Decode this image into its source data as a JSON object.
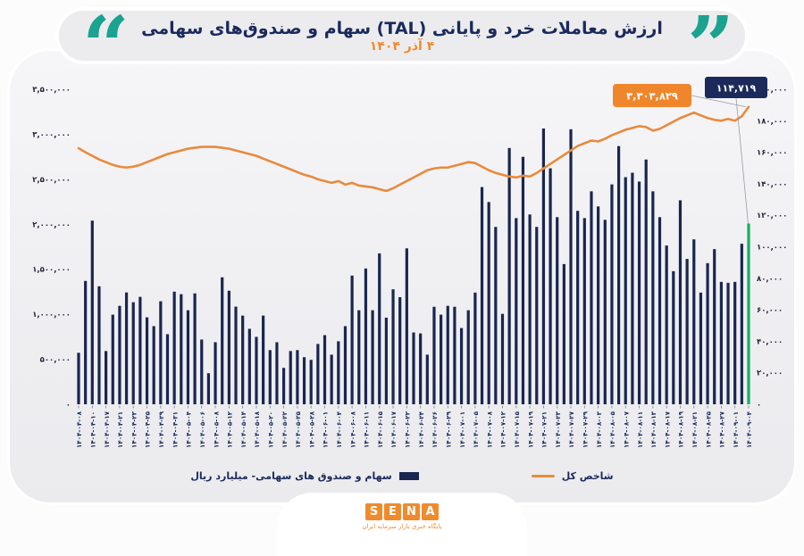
{
  "header": {
    "title": "ارزش معاملات خرد و پایانی (TAL) سهام و صندوق‌های سهامی",
    "subtitle": "۴ آذر ۱۴۰۴",
    "left_quote_glyph": "“",
    "right_quote_glyph": "”"
  },
  "legend": {
    "bars_label": "سهام و صندوق های سهامی-  میلیارد ریال",
    "line_label": "شاخص کل"
  },
  "annotations": {
    "line_value_label": "۳,۳۰۳,۸۲۹",
    "bar_value_label": "۱۱۴,۷۱۹"
  },
  "footer": {
    "logo_letters": [
      "S",
      "E",
      "N",
      "A"
    ],
    "tagline": "پایگاه خبری بازار سرمایه ایران"
  },
  "colors": {
    "navy": "#19264f",
    "orange": "#e98a3c",
    "teal": "#1aa390",
    "green_highlight": "#12b05e",
    "annotation_orange": "#f0862c",
    "annotation_navy": "#1b2a5a"
  },
  "chart_data": {
    "type": "bar",
    "title": "ارزش معاملات خرد و پایانی (TAL) سهام و صندوق‌های سهامی",
    "subtitle_date": "۴ آذر ۱۴۰۴",
    "legend_position": "bottom",
    "grid": false,
    "ylim_left": [
      0,
      3500000
    ],
    "ylim_right": [
      0,
      200000
    ],
    "left_tick_labels": [
      "۰",
      "۵۰۰,۰۰۰",
      "۱,۰۰۰,۰۰۰",
      "۱,۵۰۰,۰۰۰",
      "۲,۰۰۰,۰۰۰",
      "۲,۵۰۰,۰۰۰",
      "۳,۰۰۰,۰۰۰",
      "۳,۵۰۰,۰۰۰"
    ],
    "right_tick_labels": [
      "۰",
      "۲۰,۰۰۰",
      "۴۰,۰۰۰",
      "۶۰,۰۰۰",
      "۸۰,۰۰۰",
      "۱۰۰,۰۰۰",
      "۱۲۰,۰۰۰",
      "۱۴۰,۰۰۰",
      "۱۶۰,۰۰۰",
      "۱۸۰,۰۰۰",
      "۲۰۰,۰۰۰"
    ],
    "x_tick_every_n_bars": 2,
    "x_tick_labels": [
      "۱۴۰۴-۰۴-۰۸",
      "۱۴۰۴-۰۴-۱۰",
      "۱۴۰۴-۰۴-۱۷",
      "۱۴۰۴-۰۴-۲۱",
      "۱۴۰۴-۰۴-۲۳",
      "۱۴۰۴-۰۴-۲۵",
      "۱۴۰۴-۰۴-۲۹",
      "۱۴۰۴-۰۴-۳۱",
      "۱۴۰۴-۰۵-۰۴",
      "۱۴۰۴-۰۵-۰۶",
      "۱۴۰۴-۰۵-۰۸",
      "۱۴۰۴-۰۵-۱۲",
      "۱۴۰۴-۰۵-۱۴",
      "۱۴۰۴-۰۵-۱۸",
      "۱۴۰۴-۰۵-۲۰",
      "۱۴۰۴-۰۵-۲۲",
      "۱۴۰۴-۰۵-۲۵",
      "۱۴۰۴-۰۵-۲۸",
      "۱۴۰۴-۰۶-۰۱",
      "۱۴۰۴-۰۶-۰۴",
      "۱۴۰۴-۰۶-۰۸",
      "۱۴۰۴-۰۶-۱۱",
      "۱۴۰۴-۰۶-۱۵",
      "۱۴۰۴-۰۶-۱۷",
      "۱۴۰۴-۰۶-۲۲",
      "۱۴۰۴-۰۶-۲۴",
      "۱۴۰۴-۰۶-۲۶",
      "۱۴۰۴-۰۶-۲۹",
      "۱۴۰۴-۰۷-۰۱",
      "۱۴۰۴-۰۷-۰۵",
      "۱۴۰۴-۰۷-۰۸",
      "۱۴۰۴-۰۷-۱۲",
      "۱۴۰۴-۰۷-۱۵",
      "۱۴۰۴-۰۷-۱۹",
      "۱۴۰۴-۰۷-۲۱",
      "۱۴۰۴-۰۷-۲۳",
      "۱۴۰۴-۰۷-۲۷",
      "۱۴۰۴-۰۷-۲۹",
      "۱۴۰۴-۰۸-۰۳",
      "۱۴۰۴-۰۸-۰۵",
      "۱۴۰۴-۰۸-۰۷",
      "۱۴۰۴-۰۸-۱۱",
      "۱۴۰۴-۰۸-۱۳",
      "۱۴۰۴-۰۸-۱۷",
      "۱۴۰۴-۰۸-۱۹",
      "۱۴۰۴-۰۸-۲۱",
      "۱۴۰۴-۰۸-۲۵",
      "۱۴۰۴-۰۸-۲۷",
      "۱۴۰۴-۰۹-۰۱",
      "۱۴۰۴-۰۹-۰۴"
    ],
    "bars": {
      "name": "سهام و صندوق های سهامی",
      "unit": "میلیارد ریال",
      "axis": "right",
      "color": "#19264f",
      "last_bar_color": "#12b05e",
      "last_value": 114719,
      "values": [
        32700,
        78300,
        116600,
        74900,
        33800,
        56900,
        62500,
        71000,
        64800,
        68200,
        55200,
        49600,
        65400,
        44500,
        71500,
        69900,
        59700,
        70400,
        41100,
        19700,
        39400,
        80600,
        72100,
        62000,
        56300,
        47900,
        42800,
        56300,
        34400,
        39400,
        23100,
        33800,
        34400,
        29900,
        28200,
        38300,
        43900,
        31500,
        40000,
        49600,
        81700,
        59700,
        86200,
        59700,
        95800,
        55000,
        73000,
        68000,
        99000,
        45600,
        45000,
        31500,
        61900,
        56900,
        62500,
        61900,
        48400,
        59700,
        70900,
        137900,
        128400,
        112600,
        57400,
        162700,
        118200,
        157100,
        120500,
        112600,
        175100,
        149800,
        118800,
        89000,
        174600,
        122800,
        118200,
        135200,
        125600,
        117100,
        139600,
        163900,
        144200,
        147000,
        141400,
        155400,
        135200,
        118800,
        100800,
        84500,
        129500,
        92300,
        104700,
        70900,
        89600,
        98500,
        77700,
        77100,
        77700,
        101900,
        114719
      ]
    },
    "line": {
      "name": "شاخص کل",
      "axis": "left",
      "color": "#e98a3c",
      "last_value": 3303829,
      "values": [
        2845000,
        2800000,
        2760000,
        2720000,
        2690000,
        2660000,
        2640000,
        2630000,
        2640000,
        2660000,
        2690000,
        2720000,
        2750000,
        2780000,
        2800000,
        2820000,
        2840000,
        2850000,
        2860000,
        2860000,
        2860000,
        2850000,
        2840000,
        2820000,
        2800000,
        2780000,
        2760000,
        2730000,
        2700000,
        2670000,
        2640000,
        2610000,
        2580000,
        2550000,
        2530000,
        2500000,
        2480000,
        2460000,
        2480000,
        2440000,
        2460000,
        2430000,
        2420000,
        2410000,
        2390000,
        2370000,
        2400000,
        2440000,
        2480000,
        2520000,
        2560000,
        2600000,
        2620000,
        2630000,
        2630000,
        2650000,
        2670000,
        2690000,
        2680000,
        2640000,
        2600000,
        2570000,
        2550000,
        2530000,
        2520000,
        2540000,
        2530000,
        2570000,
        2620000,
        2670000,
        2720000,
        2770000,
        2820000,
        2870000,
        2900000,
        2930000,
        2920000,
        2950000,
        2990000,
        3020000,
        3050000,
        3070000,
        3090000,
        3080000,
        3040000,
        3060000,
        3100000,
        3140000,
        3180000,
        3210000,
        3240000,
        3210000,
        3180000,
        3160000,
        3150000,
        3170000,
        3150000,
        3200000,
        3303829
      ]
    }
  }
}
